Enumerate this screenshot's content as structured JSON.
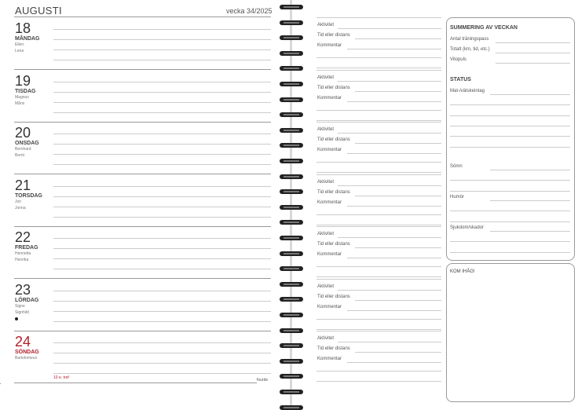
{
  "header": {
    "month": "AUGUSTI",
    "week": "vecka 34/2025"
  },
  "days": [
    {
      "num": "18",
      "name": "MÅNDAG",
      "names": [
        "Ellen",
        "Lena"
      ]
    },
    {
      "num": "19",
      "name": "TISDAG",
      "names": [
        "Magnus",
        "Måns"
      ]
    },
    {
      "num": "20",
      "name": "ONSDAG",
      "names": [
        "Bernhard",
        "Bernt"
      ]
    },
    {
      "num": "21",
      "name": "TORSDAG",
      "names": [
        "Jon",
        "Jonna"
      ]
    },
    {
      "num": "22",
      "name": "FREDAG",
      "names": [
        "Henrietta",
        "Henrika"
      ]
    },
    {
      "num": "23",
      "name": "LÖRDAG",
      "names": [
        "Signe",
        "Signhild"
      ],
      "moon": true
    },
    {
      "num": "24",
      "name": "SÖNDAG",
      "names": [
        "Bartolomeus"
      ],
      "holiday": true
    }
  ],
  "footer": {
    "sunday_note": "10 e. tref",
    "right_note": "fourde"
  },
  "activity_labels": {
    "activity": "Aktivitet",
    "time": "Tid eller distans",
    "comment": "Kommentar"
  },
  "summary": {
    "title": "SUMMERING AV VECKAN",
    "fields": [
      "Antal träningspass",
      "Totalt (km, tid, etc.)",
      "Vilopuls"
    ]
  },
  "status": {
    "title": "STATUS",
    "fields": [
      "Mat-/vätskeintag",
      "Sömn",
      "Humör",
      "Sjukdom/skador"
    ]
  },
  "remember": {
    "title": "KOM IHÅG!"
  },
  "colors": {
    "sunday": "#b1202c",
    "rings": "#222222"
  }
}
